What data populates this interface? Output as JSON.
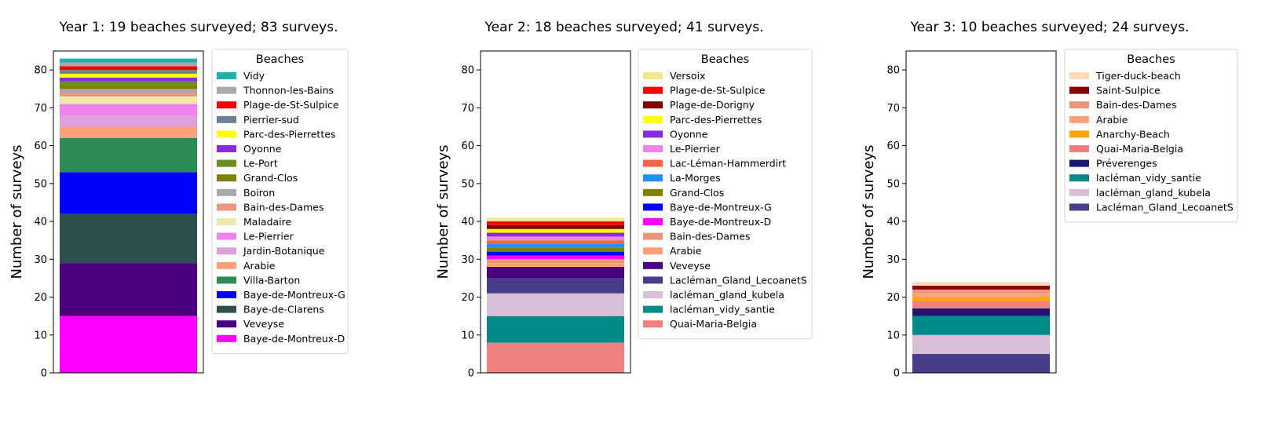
{
  "chart_data": [
    {
      "type": "bar",
      "stacked": true,
      "title": "Year 1: 19 beaches surveyed; 83 surveys.",
      "xlabel": "",
      "ylabel": "Number of surveys",
      "ylim": [
        0,
        85
      ],
      "yticks": [
        0,
        10,
        20,
        30,
        40,
        50,
        60,
        70,
        80
      ],
      "legend_title": "Beaches",
      "legend_position": "right",
      "series": [
        {
          "name": "Baye-de-Montreux-D",
          "value": 15,
          "color": "#ff00ff"
        },
        {
          "name": "Veveyse",
          "value": 14,
          "color": "#4b0082"
        },
        {
          "name": "Baye-de-Clarens",
          "value": 13,
          "color": "#2f4f4f"
        },
        {
          "name": "Baye-de-Montreux-G",
          "value": 11,
          "color": "#0000ff"
        },
        {
          "name": "Villa-Barton",
          "value": 9,
          "color": "#2e8b57"
        },
        {
          "name": "Arabie",
          "value": 3,
          "color": "#ffa07a"
        },
        {
          "name": "Jardin-Botanique",
          "value": 3,
          "color": "#dda0dd"
        },
        {
          "name": "Le-Pierrier",
          "value": 3,
          "color": "#ee82ee"
        },
        {
          "name": "Maladaire",
          "value": 2,
          "color": "#eee8aa"
        },
        {
          "name": "Bain-des-Dames",
          "value": 1,
          "color": "#e9967a"
        },
        {
          "name": "Boiron",
          "value": 1,
          "color": "#a9a9a9"
        },
        {
          "name": "Grand-Clos",
          "value": 1,
          "color": "#808000"
        },
        {
          "name": "Le-Port",
          "value": 1,
          "color": "#6b8e23"
        },
        {
          "name": "Oyonne",
          "value": 1,
          "color": "#8a2be2"
        },
        {
          "name": "Parc-des-Pierrettes",
          "value": 1,
          "color": "#ffff00"
        },
        {
          "name": "Pierrier-sud",
          "value": 1,
          "color": "#708090"
        },
        {
          "name": "Plage-de-St-Sulpice",
          "value": 1,
          "color": "#ff0000"
        },
        {
          "name": "Thonnon-les-Bains",
          "value": 1,
          "color": "#a9a9a9"
        },
        {
          "name": "Vidy",
          "value": 1,
          "color": "#20b2aa"
        }
      ]
    },
    {
      "type": "bar",
      "stacked": true,
      "title": "Year 2: 18 beaches surveyed; 41 surveys.",
      "xlabel": "",
      "ylabel": "Number of surveys",
      "ylim": [
        0,
        85
      ],
      "yticks": [
        0,
        10,
        20,
        30,
        40,
        50,
        60,
        70,
        80
      ],
      "legend_title": "Beaches",
      "legend_position": "right",
      "series": [
        {
          "name": "Quai-Maria-Belgia",
          "value": 8,
          "color": "#f08080"
        },
        {
          "name": "lacléman_vidy_santie",
          "value": 7,
          "color": "#008b8b"
        },
        {
          "name": "lacléman_gland_kubela",
          "value": 6,
          "color": "#d8bfd8"
        },
        {
          "name": "Lacléman_Gland_LecoanetS",
          "value": 4,
          "color": "#483d8b"
        },
        {
          "name": "Veveyse",
          "value": 3,
          "color": "#4b0082"
        },
        {
          "name": "Arabie",
          "value": 1,
          "color": "#ffa07a"
        },
        {
          "name": "Bain-des-Dames",
          "value": 1,
          "color": "#e9967a"
        },
        {
          "name": "Baye-de-Montreux-D",
          "value": 1,
          "color": "#ff00ff"
        },
        {
          "name": "Baye-de-Montreux-G",
          "value": 1,
          "color": "#0000ff"
        },
        {
          "name": "Grand-Clos",
          "value": 1,
          "color": "#808000"
        },
        {
          "name": "La-Morges",
          "value": 1,
          "color": "#1e90ff"
        },
        {
          "name": "Lac-Léman-Hammerdirt",
          "value": 1,
          "color": "#ff6347"
        },
        {
          "name": "Le-Pierrier",
          "value": 1,
          "color": "#ee82ee"
        },
        {
          "name": "Oyonne",
          "value": 1,
          "color": "#8a2be2"
        },
        {
          "name": "Parc-des-Pierrettes",
          "value": 1,
          "color": "#ffff00"
        },
        {
          "name": "Plage-de-Dorigny",
          "value": 1,
          "color": "#800000"
        },
        {
          "name": "Plage-de-St-Sulpice",
          "value": 1,
          "color": "#ff0000"
        },
        {
          "name": "Versoix",
          "value": 1,
          "color": "#f0e68c"
        }
      ]
    },
    {
      "type": "bar",
      "stacked": true,
      "title": "Year 3: 10 beaches surveyed; 24 surveys.",
      "xlabel": "",
      "ylabel": "Number of surveys",
      "ylim": [
        0,
        85
      ],
      "yticks": [
        0,
        10,
        20,
        30,
        40,
        50,
        60,
        70,
        80
      ],
      "legend_title": "Beaches",
      "legend_position": "right",
      "series": [
        {
          "name": "Lacléman_Gland_LecoanetS",
          "value": 5,
          "color": "#483d8b"
        },
        {
          "name": "lacléman_gland_kubela",
          "value": 5,
          "color": "#d8bfd8"
        },
        {
          "name": "lacléman_vidy_santie",
          "value": 5,
          "color": "#008b8b"
        },
        {
          "name": "Préverenges",
          "value": 2,
          "color": "#191970"
        },
        {
          "name": "Quai-Maria-Belgia",
          "value": 2,
          "color": "#f08080"
        },
        {
          "name": "Anarchy-Beach",
          "value": 1,
          "color": "#ffa500"
        },
        {
          "name": "Arabie",
          "value": 1,
          "color": "#ffa07a"
        },
        {
          "name": "Bain-des-Dames",
          "value": 1,
          "color": "#e9967a"
        },
        {
          "name": "Saint-Sulpice",
          "value": 1,
          "color": "#8b0000"
        },
        {
          "name": "Tiger-duck-beach",
          "value": 1,
          "color": "#ffdab9"
        }
      ]
    }
  ]
}
